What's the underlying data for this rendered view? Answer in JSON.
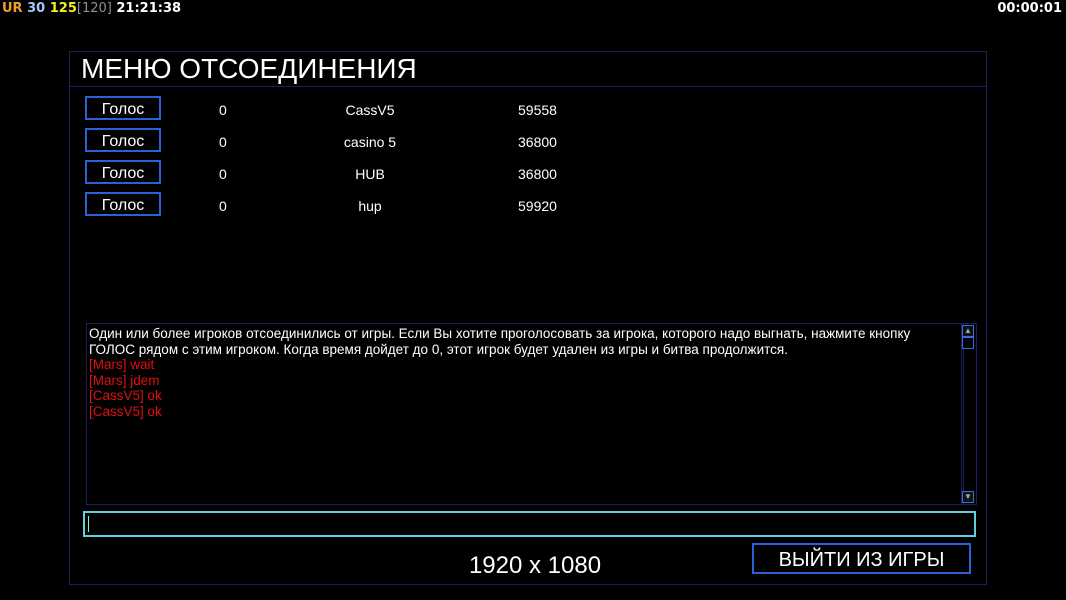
{
  "hud": {
    "ur_label": "UR",
    "fps": "30",
    "ping": "125",
    "ping_bracket": "[120]",
    "clock": "21:21:38",
    "timer": "00:00:01",
    "colors": {
      "ur": "#f0a020",
      "fps": "#a0c8ff",
      "ping": "#f0f020",
      "bracket": "#909090"
    }
  },
  "title": "МЕНЮ ОТСОЕДИНЕНИЯ",
  "players": [
    {
      "vote_label": "Голос",
      "votes": "0",
      "name": "CassV5",
      "value": "59558"
    },
    {
      "vote_label": "Голос",
      "votes": "0",
      "name": "casino 5",
      "value": "36800"
    },
    {
      "vote_label": "Голос",
      "votes": "0",
      "name": "HUB",
      "value": "36800"
    },
    {
      "vote_label": "Голос",
      "votes": "0",
      "name": "hup",
      "value": "59920"
    }
  ],
  "chat": {
    "system": "Один или более игроков отсоединились от игры. Если Вы хотите проголосовать за игрока, которого надо выгнать, нажмите кнопку  ГОЛОС рядом с этим игроком. Когда время дойдет до 0, этот игрок будет удален из игры и битва продолжится.",
    "messages": [
      "[Mars] wait",
      "[Mars] jdem",
      "[CassV5] ok",
      "[CassV5] ok"
    ],
    "message_color": "#e01010"
  },
  "input": {
    "value": ""
  },
  "resolution": "1920 x 1080",
  "exit_label": "ВЫЙТИ ИЗ ИГРЫ"
}
